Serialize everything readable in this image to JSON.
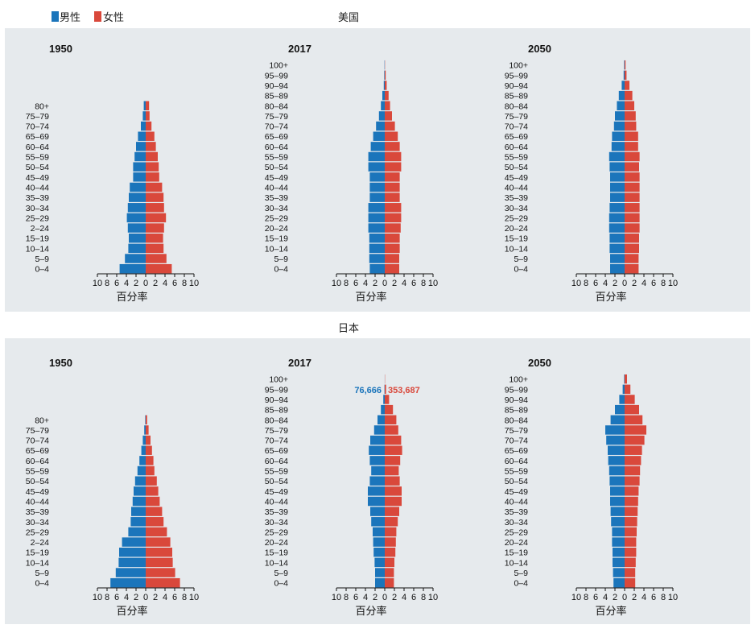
{
  "legend": {
    "items": [
      {
        "label": "男性",
        "color": "#1f77b4"
      },
      {
        "label": "女性",
        "color": "#d9483b"
      }
    ]
  },
  "colors": {
    "male": "#1b75bb",
    "female": "#d9483b",
    "panel_bg": "#e6eaed"
  },
  "sections": [
    {
      "title": "美国"
    },
    {
      "title": "日本"
    }
  ],
  "chart_data": [
    {
      "type": "bar",
      "country": "美国",
      "year": "1950",
      "age_groups": [
        "0–4",
        "5–9",
        "10–14",
        "15–19",
        "2–24",
        "25–29",
        "30–34",
        "35–39",
        "40–44",
        "45–49",
        "50–54",
        "55–59",
        "60–64",
        "65–69",
        "70–74",
        "75–79",
        "80+"
      ],
      "series": [
        {
          "name": "男性",
          "values": [
            5.4,
            4.3,
            3.6,
            3.5,
            3.7,
            3.9,
            3.7,
            3.5,
            3.3,
            2.6,
            2.6,
            2.3,
            2.0,
            1.6,
            1.0,
            0.6,
            0.4
          ]
        },
        {
          "name": "女性",
          "values": [
            5.4,
            4.3,
            3.7,
            3.6,
            3.8,
            4.2,
            3.8,
            3.7,
            3.4,
            2.8,
            2.7,
            2.5,
            2.1,
            1.8,
            1.2,
            0.8,
            0.7
          ]
        }
      ],
      "xlabel": "百分率",
      "xticks": [
        "10",
        "8",
        "6",
        "4",
        "2",
        "0",
        "2",
        "4",
        "6",
        "8",
        "10"
      ],
      "xlim": [
        -10,
        10
      ]
    },
    {
      "type": "bar",
      "country": "美国",
      "year": "2017",
      "age_groups": [
        "0–4",
        "5–9",
        "10–14",
        "15–19",
        "20–24",
        "25–29",
        "30–34",
        "35–39",
        "40–44",
        "45–49",
        "50–54",
        "55–59",
        "60–64",
        "65–69",
        "70–74",
        "75–79",
        "80–84",
        "85–89",
        "90–94",
        "95–99",
        "100+"
      ],
      "series": [
        {
          "name": "男性",
          "values": [
            3.1,
            3.2,
            3.2,
            3.2,
            3.4,
            3.4,
            3.4,
            3.1,
            3.1,
            3.1,
            3.4,
            3.4,
            2.9,
            2.4,
            1.8,
            1.2,
            0.8,
            0.5,
            0.2,
            0.1,
            0.05
          ]
        },
        {
          "name": "女性",
          "values": [
            3.0,
            3.0,
            3.1,
            3.1,
            3.3,
            3.4,
            3.4,
            3.1,
            3.1,
            3.1,
            3.4,
            3.4,
            3.1,
            2.7,
            2.1,
            1.5,
            1.1,
            0.8,
            0.4,
            0.2,
            0.05
          ]
        }
      ],
      "xlabel": "百分率",
      "xticks": [
        "10",
        "8",
        "6",
        "4",
        "2",
        "0",
        "2",
        "4",
        "6",
        "8",
        "10"
      ],
      "xlim": [
        -10,
        10
      ]
    },
    {
      "type": "bar",
      "country": "美国",
      "year": "2050",
      "age_groups": [
        "0–4",
        "5–9",
        "10–14",
        "15–19",
        "20–24",
        "25–29",
        "30–34",
        "35–39",
        "40–44",
        "45–49",
        "50–54",
        "55–59",
        "60–64",
        "65–69",
        "70–74",
        "75–79",
        "80–84",
        "85–89",
        "90–94",
        "95–99",
        "100+"
      ],
      "series": [
        {
          "name": "男性",
          "values": [
            3.0,
            3.0,
            3.1,
            3.1,
            3.2,
            3.2,
            3.1,
            3.0,
            3.0,
            3.0,
            3.1,
            3.2,
            2.7,
            2.6,
            2.2,
            2.0,
            1.6,
            1.2,
            0.6,
            0.2,
            0.1
          ]
        },
        {
          "name": "女性",
          "values": [
            2.9,
            2.9,
            3.0,
            3.0,
            3.1,
            3.1,
            3.1,
            3.1,
            3.1,
            3.1,
            3.0,
            3.1,
            2.8,
            2.8,
            2.4,
            2.3,
            2.0,
            1.6,
            1.0,
            0.4,
            0.2
          ]
        }
      ],
      "xlabel": "百分率",
      "xticks": [
        "10",
        "8",
        "6",
        "4",
        "2",
        "0",
        "2",
        "4",
        "6",
        "8",
        "10"
      ],
      "xlim": [
        -10,
        10
      ]
    },
    {
      "type": "bar",
      "country": "日本",
      "year": "1950",
      "age_groups": [
        "0–4",
        "5–9",
        "10–14",
        "15–19",
        "2–24",
        "25–29",
        "30–34",
        "35–39",
        "40–44",
        "45–49",
        "50–54",
        "55–59",
        "60–64",
        "65–69",
        "70–74",
        "75–79",
        "80+"
      ],
      "series": [
        {
          "name": "男性",
          "values": [
            7.3,
            6.2,
            5.6,
            5.5,
            4.9,
            3.6,
            3.1,
            3.0,
            2.7,
            2.5,
            2.2,
            1.7,
            1.3,
            0.9,
            0.6,
            0.3,
            0.1
          ]
        },
        {
          "name": "女性",
          "values": [
            7.1,
            6.1,
            5.6,
            5.5,
            5.1,
            4.4,
            3.7,
            3.4,
            2.9,
            2.6,
            2.3,
            1.8,
            1.6,
            1.3,
            1.0,
            0.6,
            0.3
          ]
        }
      ],
      "xlabel": "百分率",
      "xticks": [
        "10",
        "8",
        "6",
        "4",
        "2",
        "0",
        "2",
        "4",
        "6",
        "8",
        "10"
      ],
      "xlim": [
        -10,
        10
      ]
    },
    {
      "type": "bar",
      "country": "日本",
      "year": "2017",
      "age_groups": [
        "0–4",
        "5–9",
        "10–14",
        "15–19",
        "20–24",
        "25–29",
        "30–34",
        "35–39",
        "40–44",
        "45–49",
        "50–54",
        "55–59",
        "60–64",
        "65–69",
        "70–74",
        "75–79",
        "80–84",
        "85–89",
        "90–94",
        "95–99",
        "100+"
      ],
      "series": [
        {
          "name": "男性",
          "values": [
            2.0,
            2.0,
            2.1,
            2.3,
            2.4,
            2.5,
            2.8,
            3.0,
            3.5,
            3.5,
            3.1,
            2.8,
            3.1,
            3.3,
            3.0,
            2.2,
            1.5,
            0.8,
            0.3,
            0.06,
            0.01
          ]
        },
        {
          "name": "女性",
          "values": [
            1.9,
            1.9,
            2.0,
            2.2,
            2.3,
            2.4,
            2.7,
            3.0,
            3.5,
            3.5,
            3.1,
            2.9,
            3.2,
            3.6,
            3.4,
            2.8,
            2.4,
            1.7,
            0.9,
            0.28,
            0.05
          ]
        }
      ],
      "annotations": [
        {
          "text": "76,666",
          "series": "男性",
          "age_group": "95–99"
        },
        {
          "text": "353,687",
          "series": "女性",
          "age_group": "95–99"
        }
      ],
      "xlabel": "百分率",
      "xticks": [
        "10",
        "8",
        "6",
        "4",
        "2",
        "0",
        "2",
        "4",
        "6",
        "8",
        "10"
      ],
      "xlim": [
        -10,
        10
      ]
    },
    {
      "type": "bar",
      "country": "日本",
      "year": "2050",
      "age_groups": [
        "0–4",
        "5–9",
        "10–14",
        "15–19",
        "20–24",
        "25–29",
        "30–34",
        "35–39",
        "40–44",
        "45–49",
        "50–54",
        "55–59",
        "60–64",
        "65–69",
        "70–74",
        "75–79",
        "80–84",
        "85–89",
        "90–94",
        "95–99",
        "100+"
      ],
      "series": [
        {
          "name": "男性",
          "values": [
            2.3,
            2.4,
            2.5,
            2.5,
            2.6,
            2.6,
            2.8,
            2.9,
            3.0,
            3.0,
            3.1,
            3.2,
            3.4,
            3.5,
            3.8,
            4.0,
            2.9,
            2.0,
            1.1,
            0.4,
            0.1
          ]
        },
        {
          "name": "女性",
          "values": [
            2.2,
            2.2,
            2.3,
            2.4,
            2.4,
            2.5,
            2.6,
            2.7,
            2.8,
            2.9,
            3.1,
            3.2,
            3.4,
            3.6,
            4.1,
            4.5,
            3.7,
            3.0,
            2.1,
            1.2,
            0.5
          ]
        }
      ],
      "xlabel": "百分率",
      "xticks": [
        "10",
        "8",
        "6",
        "4",
        "2",
        "0",
        "2",
        "4",
        "6",
        "8",
        "10"
      ],
      "xlim": [
        -10,
        10
      ]
    }
  ]
}
